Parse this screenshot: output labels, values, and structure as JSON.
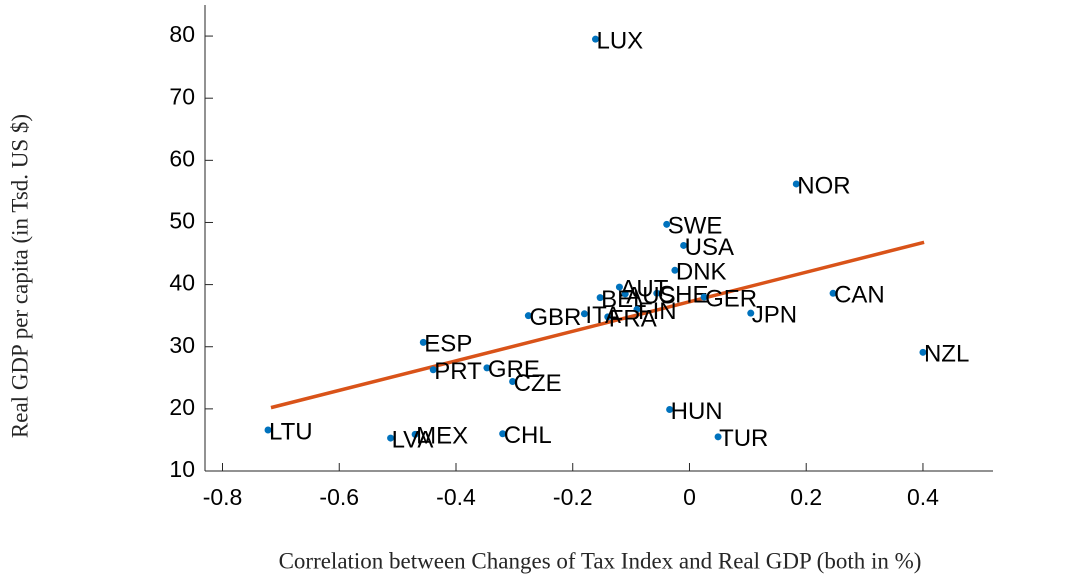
{
  "chart_data": {
    "type": "scatter",
    "xlabel": "Correlation between Changes of Tax Index and Real GDP (both in %)",
    "ylabel": "Real GDP per capita (in Tsd. US $)",
    "xlim": [
      -0.83,
      0.52
    ],
    "ylim": [
      10,
      85
    ],
    "xticks": [
      -0.8,
      -0.6,
      -0.4,
      -0.2,
      0,
      0.2,
      0.4
    ],
    "yticks": [
      10,
      20,
      30,
      40,
      50,
      60,
      70,
      80
    ],
    "color": "#0072bd",
    "point_labels": [
      "LUX",
      "NOR",
      "SWE",
      "USA",
      "DNK",
      "AUT",
      "CHE",
      "AUS",
      "BEL",
      "FIN",
      "FRA",
      "ITA",
      "GBR",
      "GER",
      "JPN",
      "CAN",
      "NZL",
      "ESP",
      "PRT",
      "GRE",
      "CZE",
      "HUN",
      "TUR",
      "CHL",
      "MEX",
      "LVA",
      "LTU"
    ],
    "x": [
      -0.161,
      0.183,
      -0.039,
      -0.01,
      -0.025,
      -0.12,
      -0.056,
      -0.11,
      -0.153,
      -0.09,
      -0.14,
      -0.18,
      -0.276,
      0.025,
      0.105,
      0.246,
      0.4,
      -0.456,
      -0.439,
      -0.347,
      -0.303,
      -0.034,
      0.049,
      -0.32,
      -0.47,
      -0.512,
      -0.722
    ],
    "values": [
      79.5,
      56.2,
      49.7,
      46.3,
      42.3,
      39.6,
      38.6,
      38.5,
      37.9,
      36.0,
      34.8,
      35.3,
      35.0,
      38.0,
      35.4,
      38.6,
      29.1,
      30.7,
      26.3,
      26.6,
      24.4,
      19.9,
      15.5,
      16.0,
      15.9,
      15.3,
      16.6
    ],
    "fit": {
      "color": "#d95319",
      "x": [
        -0.717,
        0.402
      ],
      "values": [
        20.2,
        46.8
      ]
    }
  }
}
